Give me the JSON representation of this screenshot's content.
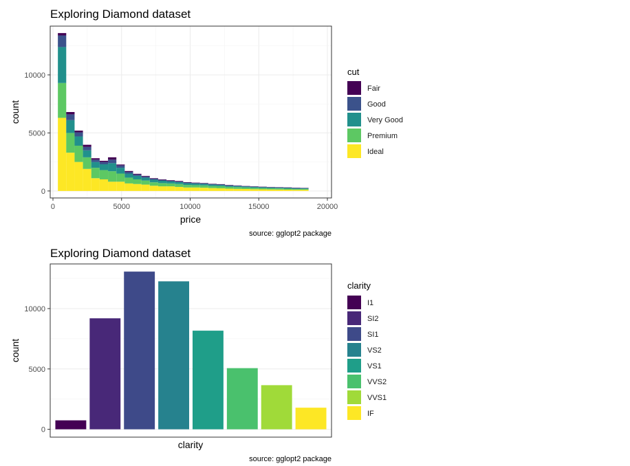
{
  "chart_data": [
    {
      "type": "bar",
      "subtype": "stacked-histogram",
      "title": "Exploring Diamond dataset",
      "xlabel": "price",
      "ylabel": "count",
      "caption": "source: gglopt2 package",
      "legend_title": "cut",
      "legend_placement": "right",
      "grid": true,
      "xlim": [
        -200,
        20300
      ],
      "ylim": [
        -600,
        14200
      ],
      "xticks": [
        0,
        5000,
        10000,
        15000,
        20000
      ],
      "xtick_labels": [
        "0",
        "5000",
        "10000",
        "15000",
        "20000"
      ],
      "yticks": [
        0,
        5000,
        10000
      ],
      "ytick_labels": [
        "0",
        "5000",
        "10000"
      ],
      "bin_centers": [
        663,
        1272,
        1881,
        2490,
        3099,
        3708,
        4317,
        4926,
        5535,
        6144,
        6753,
        7362,
        7971,
        8580,
        9189,
        9798,
        10407,
        11016,
        11625,
        12234,
        12843,
        13452,
        14061,
        14670,
        15279,
        15888,
        16497,
        17106,
        17715,
        18324
      ],
      "series": [
        {
          "name": "Ideal",
          "color": "#FDE725",
          "values": [
            6300,
            3300,
            2500,
            1900,
            1100,
            1000,
            800,
            800,
            650,
            600,
            550,
            450,
            400,
            400,
            350,
            300,
            300,
            280,
            250,
            230,
            200,
            180,
            170,
            150,
            140,
            130,
            120,
            110,
            100,
            100
          ]
        },
        {
          "name": "Premium",
          "color": "#5DC863",
          "values": [
            3000,
            1700,
            1400,
            1000,
            900,
            800,
            900,
            700,
            500,
            400,
            350,
            300,
            280,
            250,
            250,
            220,
            200,
            200,
            180,
            180,
            150,
            150,
            130,
            120,
            110,
            100,
            100,
            90,
            80,
            80
          ]
        },
        {
          "name": "Very Good",
          "color": "#21908C",
          "values": [
            3100,
            1100,
            800,
            600,
            500,
            500,
            700,
            500,
            350,
            300,
            250,
            220,
            200,
            170,
            160,
            150,
            140,
            130,
            120,
            110,
            100,
            90,
            80,
            80,
            70,
            70,
            60,
            60,
            50,
            50
          ]
        },
        {
          "name": "Good",
          "color": "#3B528B",
          "values": [
            1000,
            500,
            350,
            300,
            200,
            200,
            300,
            200,
            150,
            120,
            100,
            90,
            80,
            70,
            60,
            60,
            50,
            50,
            40,
            40,
            40,
            40,
            30,
            30,
            30,
            30,
            30,
            30,
            30,
            20
          ]
        },
        {
          "name": "Fair",
          "color": "#440154",
          "values": [
            200,
            200,
            150,
            180,
            120,
            100,
            200,
            80,
            70,
            60,
            50,
            40,
            40,
            40,
            40,
            30,
            30,
            30,
            30,
            30,
            30,
            20,
            20,
            20,
            20,
            20,
            20,
            20,
            20,
            20
          ]
        }
      ]
    },
    {
      "type": "bar",
      "title": "Exploring Diamond dataset",
      "xlabel": "clarity",
      "ylabel": "count",
      "caption": "source: gglopt2 package",
      "legend_title": "clarity",
      "legend_placement": "right",
      "grid": true,
      "ylim": [
        -650,
        13700
      ],
      "yticks": [
        0,
        5000,
        10000
      ],
      "ytick_labels": [
        "0",
        "5000",
        "10000"
      ],
      "categories": [
        "I1",
        "SI2",
        "SI1",
        "VS2",
        "VS1",
        "VVS2",
        "VVS1",
        "IF"
      ],
      "values": [
        741,
        9194,
        13065,
        12258,
        8171,
        5066,
        3655,
        1790
      ],
      "colors": [
        "#440154",
        "#482878",
        "#3E4A89",
        "#26828E",
        "#1F9E89",
        "#4AC16D",
        "#A0DA39",
        "#FDE725"
      ]
    }
  ]
}
